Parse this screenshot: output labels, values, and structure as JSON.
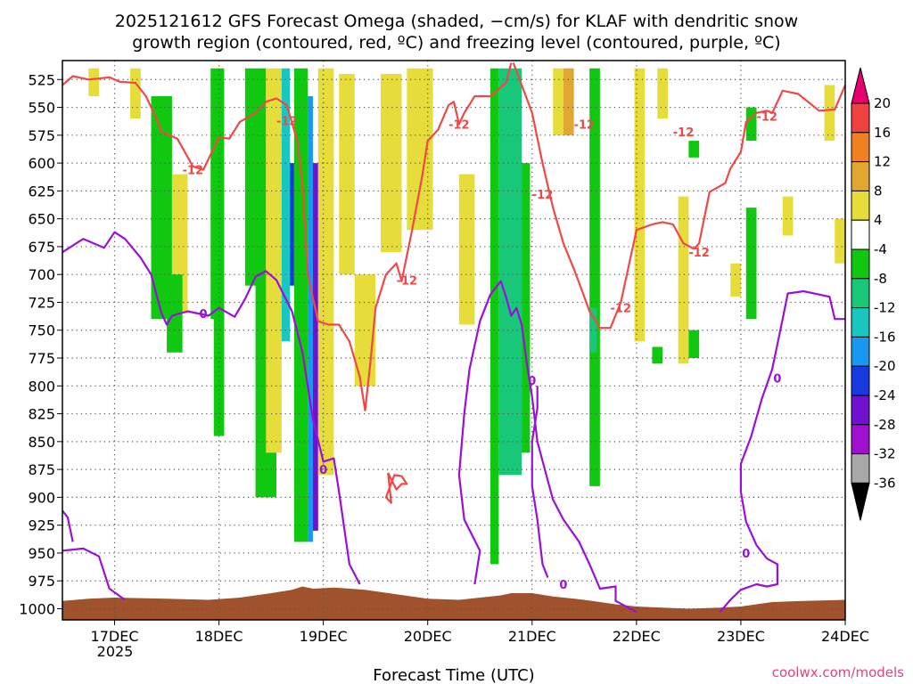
{
  "chart_data": {
    "type": "heatmap",
    "title_line1": "2025121612 GFS Forecast Omega (shaded, −cm/s) for KLAF with dendritic snow",
    "title_line2": "growth region (contoured, red, ºC) and freezing level (contoured, purple, ºC)",
    "xlabel": "Forecast Time (UTC)",
    "ylabel": "",
    "credit": "coolwx.com/models",
    "x_ticks": [
      "17DEC",
      "18DEC",
      "19DEC",
      "20DEC",
      "21DEC",
      "22DEC",
      "23DEC",
      "24DEC"
    ],
    "x_year_label": "2025",
    "xlim_days": [
      16.5,
      24.0
    ],
    "y_ticks": [
      525,
      550,
      575,
      600,
      625,
      650,
      675,
      700,
      725,
      750,
      775,
      800,
      825,
      850,
      875,
      900,
      925,
      950,
      975,
      1000
    ],
    "ylim_hpa": [
      508,
      1010
    ],
    "colorbar": {
      "labels": [
        "20",
        "16",
        "12",
        "8",
        "4",
        "-4",
        "-8",
        "-12",
        "-16",
        "-20",
        "-24",
        "-28",
        "-32",
        "-36"
      ],
      "bins": [
        {
          "lo": 20,
          "hi": 24,
          "color": "#e8006e"
        },
        {
          "lo": 16,
          "hi": 20,
          "color": "#f04040"
        },
        {
          "lo": 12,
          "hi": 16,
          "color": "#f08020"
        },
        {
          "lo": 8,
          "hi": 12,
          "color": "#e0a830"
        },
        {
          "lo": 4,
          "hi": 8,
          "color": "#e6dc3a"
        },
        {
          "lo": -4,
          "hi": 4,
          "color": "#ffffff"
        },
        {
          "lo": -8,
          "hi": -4,
          "color": "#10c810"
        },
        {
          "lo": -12,
          "hi": -8,
          "color": "#18c878"
        },
        {
          "lo": -16,
          "hi": -12,
          "color": "#18c8c0"
        },
        {
          "lo": -20,
          "hi": -16,
          "color": "#1898f0"
        },
        {
          "lo": -24,
          "hi": -20,
          "color": "#1838e0"
        },
        {
          "lo": -28,
          "hi": -24,
          "color": "#7010d0"
        },
        {
          "lo": -32,
          "hi": -28,
          "color": "#a010d0"
        },
        {
          "lo": -36,
          "hi": -32,
          "color": "#a8a8a8"
        },
        {
          "lo": -40,
          "hi": -36,
          "color": "#000000"
        }
      ]
    },
    "colors": {
      "dgz_contour": "#f04848",
      "freezing_contour": "#9a10d8",
      "terrain": "#a0522d",
      "grid": "#555555"
    },
    "terrain_surface_hpa": [
      [
        16.5,
        993
      ],
      [
        16.75,
        991
      ],
      [
        17.0,
        990
      ],
      [
        17.5,
        991
      ],
      [
        17.9,
        992
      ],
      [
        18.2,
        990
      ],
      [
        18.5,
        986
      ],
      [
        18.7,
        983
      ],
      [
        18.8,
        980
      ],
      [
        18.9,
        982
      ],
      [
        19.1,
        981
      ],
      [
        19.4,
        983
      ],
      [
        19.7,
        987
      ],
      [
        20.0,
        991
      ],
      [
        20.3,
        992
      ],
      [
        20.5,
        990
      ],
      [
        20.7,
        988
      ],
      [
        20.8,
        986
      ],
      [
        21.0,
        986
      ],
      [
        21.2,
        989
      ],
      [
        21.5,
        992
      ],
      [
        21.8,
        996
      ],
      [
        22.0,
        998
      ],
      [
        22.5,
        1000
      ],
      [
        22.8,
        999
      ],
      [
        23.0,
        998
      ],
      [
        23.3,
        994
      ],
      [
        23.6,
        993
      ],
      [
        24.0,
        992
      ]
    ],
    "dgz_contours_minus12": [
      [
        [
          16.5,
          530
        ],
        [
          16.6,
          522
        ],
        [
          16.75,
          525
        ],
        [
          16.95,
          523
        ],
        [
          17.05,
          527
        ],
        [
          17.2,
          528
        ],
        [
          17.3,
          540
        ],
        [
          17.4,
          560
        ],
        [
          17.45,
          572
        ],
        [
          17.6,
          578
        ],
        [
          17.75,
          603
        ],
        [
          17.85,
          606
        ],
        [
          18.0,
          577
        ],
        [
          18.1,
          578
        ],
        [
          18.2,
          563
        ],
        [
          18.35,
          555
        ],
        [
          18.45,
          545
        ],
        [
          18.55,
          542
        ],
        [
          18.65,
          548
        ],
        [
          18.75,
          580
        ],
        [
          18.8,
          620
        ],
        [
          18.85,
          700
        ],
        [
          18.95,
          742
        ],
        [
          19.05,
          745
        ],
        [
          19.15,
          745
        ],
        [
          19.25,
          760
        ],
        [
          19.35,
          792
        ],
        [
          19.4,
          822
        ],
        [
          19.45,
          780
        ],
        [
          19.5,
          730
        ],
        [
          19.6,
          700
        ],
        [
          19.7,
          690
        ],
        [
          19.75,
          706
        ],
        [
          19.85,
          660
        ],
        [
          19.95,
          610
        ],
        [
          20.0,
          580
        ],
        [
          20.1,
          570
        ],
        [
          20.2,
          548
        ],
        [
          20.25,
          545
        ],
        [
          20.3,
          565
        ],
        [
          20.35,
          555
        ],
        [
          20.45,
          540
        ],
        [
          20.6,
          540
        ],
        [
          20.75,
          528
        ],
        [
          20.8,
          510
        ]
      ],
      [
        [
          20.82,
          510
        ],
        [
          20.9,
          530
        ],
        [
          21.0,
          555
        ],
        [
          21.1,
          600
        ],
        [
          21.2,
          640
        ],
        [
          21.3,
          672
        ],
        [
          21.4,
          695
        ],
        [
          21.5,
          720
        ],
        [
          21.55,
          733
        ],
        [
          21.65,
          748
        ],
        [
          21.75,
          748
        ],
        [
          21.85,
          725
        ],
        [
          22.0,
          660
        ],
        [
          22.15,
          655
        ],
        [
          22.25,
          653
        ],
        [
          22.35,
          655
        ],
        [
          22.45,
          672
        ],
        [
          22.55,
          677
        ],
        [
          22.6,
          672
        ],
        [
          22.7,
          626
        ],
        [
          22.85,
          618
        ],
        [
          22.9,
          605
        ],
        [
          23.0,
          590
        ],
        [
          23.05,
          563
        ],
        [
          23.15,
          555
        ],
        [
          23.25,
          553
        ],
        [
          23.3,
          555
        ],
        [
          23.4,
          535
        ],
        [
          23.55,
          538
        ],
        [
          23.75,
          553
        ],
        [
          23.9,
          552
        ],
        [
          24.0,
          530
        ]
      ],
      [
        [
          19.62,
          878
        ],
        [
          19.7,
          893
        ],
        [
          19.75,
          888
        ],
        [
          19.8,
          888
        ],
        [
          19.75,
          881
        ],
        [
          19.68,
          880
        ],
        [
          19.6,
          900
        ],
        [
          19.65,
          905
        ],
        [
          19.62,
          878
        ]
      ]
    ],
    "freezing_contours_0": [
      [
        [
          16.5,
          680
        ],
        [
          16.7,
          668
        ],
        [
          16.9,
          676
        ],
        [
          17.0,
          662
        ],
        [
          17.1,
          668
        ],
        [
          17.25,
          685
        ],
        [
          17.35,
          700
        ],
        [
          17.45,
          735
        ],
        [
          17.5,
          745
        ],
        [
          17.55,
          737
        ],
        [
          17.7,
          733
        ],
        [
          17.9,
          737
        ],
        [
          18.0,
          730
        ],
        [
          18.15,
          738
        ],
        [
          18.25,
          722
        ],
        [
          18.35,
          702
        ],
        [
          18.45,
          697
        ],
        [
          18.55,
          705
        ],
        [
          18.7,
          733
        ],
        [
          18.8,
          770
        ],
        [
          18.9,
          830
        ],
        [
          19.0,
          868
        ],
        [
          19.1,
          865
        ],
        [
          19.15,
          895
        ],
        [
          19.25,
          960
        ],
        [
          19.35,
          978
        ]
      ],
      [
        [
          20.45,
          978
        ],
        [
          20.5,
          948
        ],
        [
          20.35,
          920
        ],
        [
          20.3,
          880
        ],
        [
          20.35,
          825
        ],
        [
          20.4,
          785
        ],
        [
          20.5,
          742
        ],
        [
          20.6,
          718
        ],
        [
          20.7,
          706
        ],
        [
          20.75,
          720
        ],
        [
          20.8,
          737
        ],
        [
          20.85,
          730
        ],
        [
          20.9,
          745
        ],
        [
          20.95,
          780
        ],
        [
          21.0,
          810
        ],
        [
          21.05,
          850
        ],
        [
          21.15,
          885
        ],
        [
          21.2,
          902
        ],
        [
          21.3,
          920
        ],
        [
          21.45,
          940
        ],
        [
          21.55,
          960
        ],
        [
          21.65,
          982
        ],
        [
          21.8,
          980
        ],
        [
          21.8,
          993
        ],
        [
          22.0,
          1003
        ]
      ],
      [
        [
          22.8,
          1003
        ],
        [
          22.9,
          992
        ],
        [
          23.0,
          983
        ],
        [
          23.15,
          978
        ],
        [
          23.25,
          980
        ],
        [
          23.35,
          978
        ],
        [
          23.35,
          960
        ],
        [
          23.25,
          955
        ],
        [
          23.15,
          943
        ],
        [
          23.05,
          922
        ],
        [
          23.0,
          895
        ],
        [
          23.0,
          870
        ],
        [
          23.1,
          845
        ],
        [
          23.2,
          812
        ],
        [
          23.3,
          785
        ],
        [
          23.4,
          740
        ],
        [
          23.45,
          717
        ],
        [
          23.6,
          715
        ],
        [
          23.75,
          718
        ],
        [
          23.85,
          720
        ],
        [
          23.9,
          740
        ],
        [
          24.0,
          740
        ]
      ],
      [
        [
          21.15,
          972
        ],
        [
          21.1,
          960
        ],
        [
          21.05,
          920
        ],
        [
          21.0,
          890
        ],
        [
          21.0,
          850
        ],
        [
          21.05,
          820
        ],
        [
          21.05,
          800
        ]
      ],
      [
        [
          16.5,
          948
        ],
        [
          16.7,
          946
        ],
        [
          16.85,
          953
        ],
        [
          16.95,
          982
        ],
        [
          17.1,
          992
        ]
      ],
      [
        [
          16.5,
          912
        ],
        [
          16.55,
          918
        ],
        [
          16.6,
          940
        ]
      ]
    ],
    "contour_labels": [
      {
        "text": "-12",
        "x": 18.65,
        "p": 562,
        "series": "dgz"
      },
      {
        "text": "-12",
        "x": 17.75,
        "p": 606,
        "series": "dgz"
      },
      {
        "text": "-12",
        "x": 20.3,
        "p": 565,
        "series": "dgz"
      },
      {
        "text": "-12",
        "x": 21.1,
        "p": 628,
        "series": "dgz"
      },
      {
        "text": "-12",
        "x": 21.5,
        "p": 565,
        "series": "dgz"
      },
      {
        "text": "-12",
        "x": 19.8,
        "p": 705,
        "series": "dgz"
      },
      {
        "text": "-12",
        "x": 22.6,
        "p": 680,
        "series": "dgz"
      },
      {
        "text": "-12",
        "x": 21.85,
        "p": 730,
        "series": "dgz"
      },
      {
        "text": "-12",
        "x": 22.45,
        "p": 572,
        "series": "dgz"
      },
      {
        "text": "-12",
        "x": 23.25,
        "p": 558,
        "series": "dgz"
      },
      {
        "text": "0",
        "x": 17.85,
        "p": 735,
        "series": "frz"
      },
      {
        "text": "0",
        "x": 19.0,
        "p": 875,
        "series": "frz"
      },
      {
        "text": "0",
        "x": 21.0,
        "p": 795,
        "series": "frz"
      },
      {
        "text": "0",
        "x": 21.3,
        "p": 978,
        "series": "frz"
      },
      {
        "text": "0",
        "x": 23.05,
        "p": 950,
        "series": "frz"
      },
      {
        "text": "0",
        "x": 23.35,
        "p": 793,
        "series": "frz"
      }
    ],
    "omega_patches": [
      {
        "x0": 17.35,
        "x1": 17.55,
        "p0": 540,
        "p1": 740,
        "v": -6
      },
      {
        "x0": 17.55,
        "x1": 17.7,
        "p0": 610,
        "p1": 735,
        "v": 5
      },
      {
        "x0": 17.5,
        "x1": 17.65,
        "p0": 700,
        "p1": 770,
        "v": -6
      },
      {
        "x0": 17.92,
        "x1": 18.05,
        "p0": 515,
        "p1": 740,
        "v": -6
      },
      {
        "x0": 17.95,
        "x1": 18.05,
        "p0": 735,
        "p1": 845,
        "v": -6
      },
      {
        "x0": 18.25,
        "x1": 18.45,
        "p0": 515,
        "p1": 710,
        "v": -6
      },
      {
        "x0": 18.35,
        "x1": 18.55,
        "p0": 700,
        "p1": 900,
        "v": -6
      },
      {
        "x0": 18.45,
        "x1": 18.6,
        "p0": 515,
        "p1": 860,
        "v": 5
      },
      {
        "x0": 18.6,
        "x1": 18.68,
        "p0": 515,
        "p1": 760,
        "v": -14
      },
      {
        "x0": 18.68,
        "x1": 18.72,
        "p0": 600,
        "p1": 710,
        "v": -22
      },
      {
        "x0": 18.72,
        "x1": 18.85,
        "p0": 515,
        "p1": 940,
        "v": -6
      },
      {
        "x0": 18.85,
        "x1": 18.9,
        "p0": 540,
        "p1": 940,
        "v": -18
      },
      {
        "x0": 18.9,
        "x1": 18.95,
        "p0": 600,
        "p1": 930,
        "v": -26
      },
      {
        "x0": 18.95,
        "x1": 19.1,
        "p0": 515,
        "p1": 880,
        "v": 5
      },
      {
        "x0": 19.15,
        "x1": 19.3,
        "p0": 520,
        "p1": 700,
        "v": 5
      },
      {
        "x0": 19.3,
        "x1": 19.5,
        "p0": 700,
        "p1": 800,
        "v": 5
      },
      {
        "x0": 19.55,
        "x1": 19.75,
        "p0": 520,
        "p1": 680,
        "v": 5
      },
      {
        "x0": 19.8,
        "x1": 20.05,
        "p0": 515,
        "p1": 660,
        "v": 5
      },
      {
        "x0": 20.3,
        "x1": 20.45,
        "p0": 610,
        "p1": 745,
        "v": 5
      },
      {
        "x0": 20.6,
        "x1": 20.68,
        "p0": 515,
        "p1": 960,
        "v": -6
      },
      {
        "x0": 20.68,
        "x1": 20.9,
        "p0": 515,
        "p1": 880,
        "v": -10
      },
      {
        "x0": 20.9,
        "x1": 20.98,
        "p0": 600,
        "p1": 860,
        "v": -6
      },
      {
        "x0": 21.2,
        "x1": 21.3,
        "p0": 515,
        "p1": 575,
        "v": 5
      },
      {
        "x0": 21.3,
        "x1": 21.4,
        "p0": 515,
        "p1": 575,
        "v": 10
      },
      {
        "x0": 21.55,
        "x1": 21.65,
        "p0": 515,
        "p1": 890,
        "v": -6
      },
      {
        "x0": 21.55,
        "x1": 21.62,
        "p0": 730,
        "p1": 770,
        "v": -10
      },
      {
        "x0": 21.98,
        "x1": 22.08,
        "p0": 515,
        "p1": 760,
        "v": 5
      },
      {
        "x0": 22.2,
        "x1": 22.3,
        "p0": 515,
        "p1": 560,
        "v": 5
      },
      {
        "x0": 22.4,
        "x1": 22.5,
        "p0": 630,
        "p1": 780,
        "v": 5
      },
      {
        "x0": 22.5,
        "x1": 22.6,
        "p0": 580,
        "p1": 595,
        "v": -6
      },
      {
        "x0": 22.15,
        "x1": 22.25,
        "p0": 765,
        "p1": 780,
        "v": -6
      },
      {
        "x0": 22.5,
        "x1": 22.6,
        "p0": 750,
        "p1": 775,
        "v": -6
      },
      {
        "x0": 22.9,
        "x1": 23.0,
        "p0": 690,
        "p1": 720,
        "v": 5
      },
      {
        "x0": 23.05,
        "x1": 23.15,
        "p0": 640,
        "p1": 740,
        "v": -6
      },
      {
        "x0": 23.05,
        "x1": 23.15,
        "p0": 550,
        "p1": 580,
        "v": -6
      },
      {
        "x0": 23.4,
        "x1": 23.5,
        "p0": 630,
        "p1": 665,
        "v": 5
      },
      {
        "x0": 23.8,
        "x1": 23.9,
        "p0": 530,
        "p1": 580,
        "v": 5
      },
      {
        "x0": 23.9,
        "x1": 24.0,
        "p0": 650,
        "p1": 690,
        "v": 5
      },
      {
        "x0": 16.75,
        "x1": 16.85,
        "p0": 515,
        "p1": 540,
        "v": 5
      },
      {
        "x0": 17.15,
        "x1": 17.25,
        "p0": 515,
        "p1": 560,
        "v": 5
      }
    ]
  }
}
